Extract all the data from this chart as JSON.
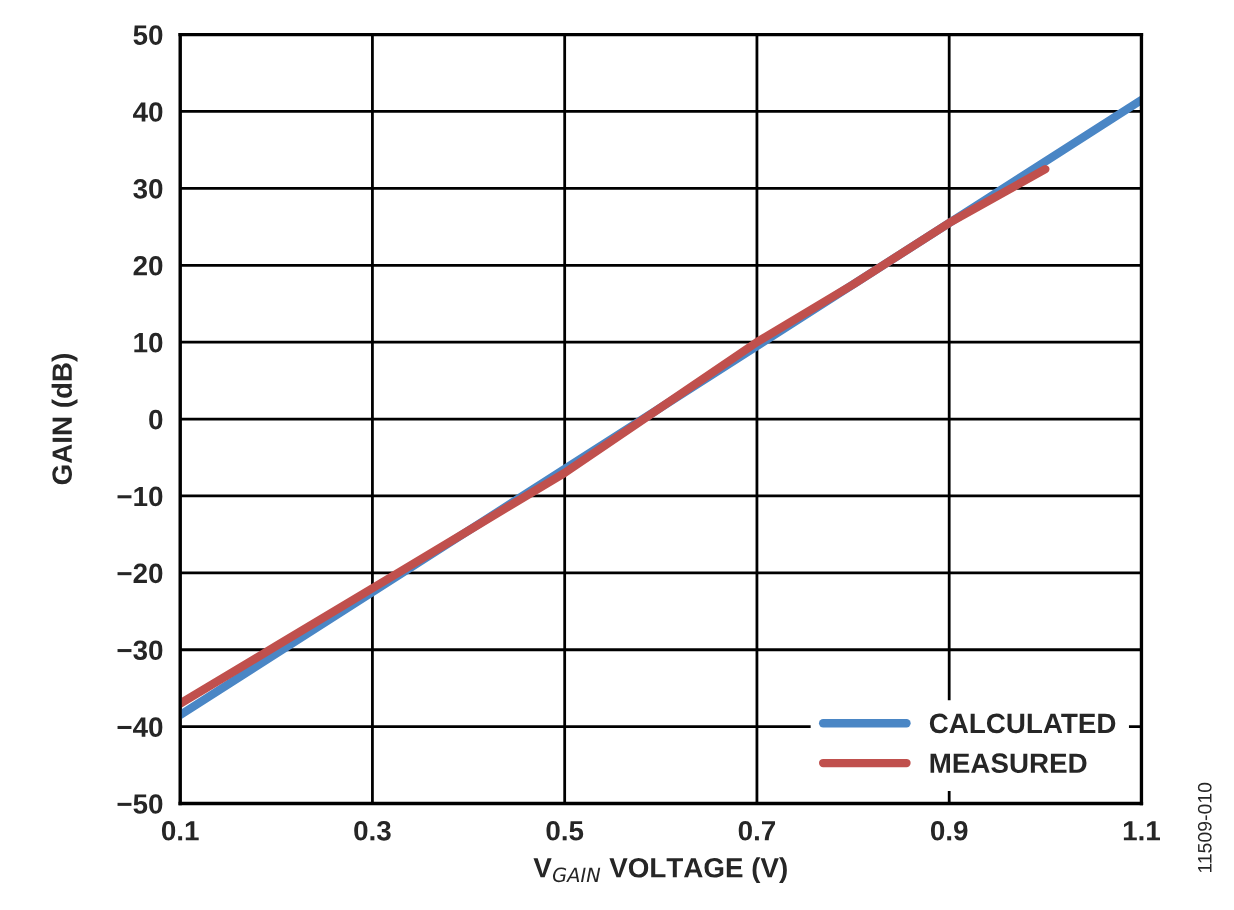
{
  "chart_data": {
    "type": "line",
    "xlabel": "V$_{GAIN}$ VOLTAGE (V)",
    "ylabel": "GAIN (dB)",
    "series": [
      {
        "name": "CALCULATED",
        "color": "#4a86c5",
        "x": [
          0.1,
          1.1
        ],
        "values": [
          -38.5,
          41.5
        ]
      },
      {
        "name": "MEASURED",
        "color": "#c0504d",
        "x": [
          0.1,
          0.2,
          0.3,
          0.4,
          0.5,
          0.6,
          0.7,
          0.8,
          0.9,
          1.0
        ],
        "values": [
          -37,
          -29.5,
          -22,
          -14.5,
          -7,
          1.5,
          10,
          17.5,
          25.5,
          32.5
        ]
      }
    ],
    "xlim": [
      0.1,
      1.1
    ],
    "xticks": [
      0.1,
      0.3,
      0.5,
      0.7,
      0.9,
      1.1
    ],
    "ylim": [
      -50,
      50
    ],
    "yticks": [
      {
        "value": -50,
        "label": "−50"
      },
      {
        "value": -40,
        "label": "−40"
      },
      {
        "value": -30,
        "label": "−30"
      },
      {
        "value": -20,
        "label": "−20"
      },
      {
        "value": -10,
        "label": "−10"
      },
      0,
      10,
      20,
      30,
      40,
      50
    ],
    "grid": true,
    "legend": "bottom right",
    "line_style": "solid",
    "marker": "none",
    "annotations": [
      "11509-010"
    ]
  }
}
